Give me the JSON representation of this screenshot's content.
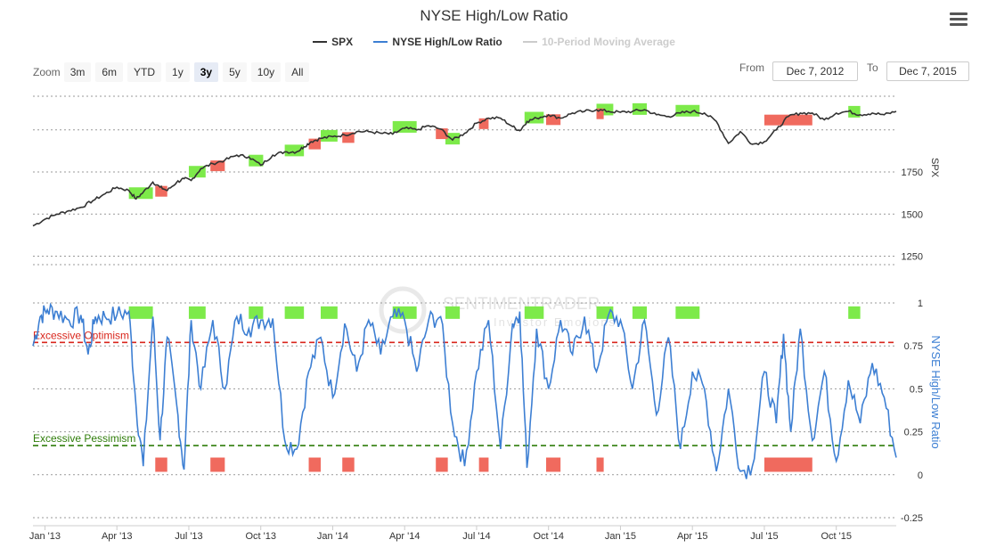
{
  "chart_data": {
    "type": "line",
    "title": "NYSE High/Low Ratio",
    "legend": [
      {
        "name": "SPX",
        "color": "#333333",
        "visible": true
      },
      {
        "name": "NYSE High/Low Ratio",
        "color": "#3d7fd3",
        "visible": true
      },
      {
        "name": "10-Period Moving Average",
        "color": "#cccccc",
        "visible": false
      }
    ],
    "x_ticks": [
      "Jan '13",
      "Apr '13",
      "Jul '13",
      "Oct '13",
      "Jan '14",
      "Apr '14",
      "Jul '14",
      "Oct '14",
      "Jan '15",
      "Apr '15",
      "Jul '15",
      "Oct '15"
    ],
    "spx_axis": {
      "label": "SPX",
      "ticks": [
        "1250",
        "1500",
        "1750"
      ],
      "ylim": [
        1200,
        2200
      ]
    },
    "ratio_axis": {
      "label": "NYSE High/Low Ratio",
      "ticks": [
        "-0.25",
        "0",
        "0.25",
        "0.5",
        "0.75",
        "1"
      ],
      "ylim": [
        -0.25,
        1
      ]
    },
    "series": [
      {
        "name": "SPX",
        "x": [
          0,
          0.5,
          1,
          1.5,
          2,
          2.5,
          3,
          3.5,
          4,
          4.3,
          4.6,
          5,
          5.3,
          5.6,
          6,
          6.3,
          6.6,
          7,
          7.5,
          8,
          8.5,
          9,
          9.5,
          10,
          10.5,
          11,
          11.3,
          11.6,
          12,
          12.5,
          13,
          13.5,
          14,
          14.5,
          15,
          15.5,
          16,
          16.5,
          17,
          17.5,
          18,
          18.5,
          19,
          19.5,
          20,
          20.3,
          20.6,
          21,
          21.5,
          22,
          22.5,
          23,
          23.5,
          24,
          24.5,
          25,
          25.5,
          26,
          26.5,
          27,
          27.5,
          28,
          28.5,
          29,
          29.5,
          30,
          30.5,
          31,
          31.5,
          32,
          32.5,
          33,
          33.5,
          34,
          34.5,
          35,
          35.5,
          36
        ],
        "values": [
          1430,
          1470,
          1500,
          1520,
          1540,
          1580,
          1620,
          1660,
          1640,
          1590,
          1630,
          1690,
          1660,
          1640,
          1690,
          1710,
          1700,
          1770,
          1800,
          1820,
          1850,
          1840,
          1790,
          1850,
          1870,
          1870,
          1900,
          1930,
          1950,
          1960,
          1970,
          1990,
          1990,
          1980,
          1975,
          2010,
          2000,
          2025,
          2005,
          1940,
          1980,
          2040,
          2070,
          2070,
          2020,
          1995,
          2050,
          2070,
          2090,
          2070,
          2100,
          2110,
          2120,
          2110,
          2105,
          2110,
          2120,
          2090,
          2080,
          2100,
          2110,
          2100,
          2050,
          1920,
          1990,
          1915,
          1930,
          2000,
          2080,
          2100,
          2100,
          2060,
          2100,
          2110,
          2090,
          2100,
          2090,
          2110
        ]
      },
      {
        "name": "NYSE High/Low Ratio",
        "x": [
          0,
          0.3,
          0.6,
          1,
          1.5,
          2,
          2.3,
          2.6,
          3,
          3.5,
          4,
          4.3,
          4.6,
          5,
          5.3,
          5.6,
          6,
          6.3,
          6.6,
          7,
          7.5,
          8,
          8.5,
          9,
          9.5,
          10,
          10.5,
          11,
          11.5,
          12,
          12.5,
          13,
          13.5,
          14,
          14.5,
          15,
          15.5,
          16,
          16.5,
          17,
          17.5,
          18,
          18.5,
          19,
          19.5,
          20,
          20.3,
          20.6,
          21,
          21.5,
          22,
          22.5,
          23,
          23.5,
          24,
          24.5,
          25,
          25.5,
          26,
          26.5,
          27,
          27.5,
          28,
          28.5,
          29,
          29.5,
          30,
          30.5,
          31,
          31.3,
          31.6,
          32,
          32.5,
          33,
          33.5,
          34,
          34.5,
          35,
          35.5,
          36
        ],
        "values": [
          0.75,
          0.92,
          0.96,
          0.95,
          0.9,
          0.93,
          0.7,
          0.92,
          0.92,
          0.93,
          0.95,
          0.4,
          0.05,
          0.92,
          0.2,
          0.8,
          0.4,
          0.03,
          0.9,
          0.5,
          0.9,
          0.5,
          0.92,
          0.85,
          0.9,
          0.91,
          0.2,
          0.15,
          0.6,
          0.8,
          0.45,
          0.88,
          0.6,
          0.9,
          0.7,
          0.92,
          0.9,
          0.6,
          0.9,
          0.92,
          0.3,
          0.05,
          0.6,
          0.9,
          0.15,
          0.88,
          0.95,
          0.04,
          0.85,
          0.5,
          0.9,
          0.7,
          0.92,
          0.6,
          0.93,
          0.9,
          0.5,
          0.9,
          0.35,
          0.8,
          0.15,
          0.6,
          0.5,
          0.02,
          0.5,
          0.02,
          0.05,
          0.6,
          0.3,
          0.82,
          0.25,
          0.85,
          0.2,
          0.6,
          0.08,
          0.55,
          0.3,
          0.65,
          0.45,
          0.1
        ]
      }
    ],
    "thresholds": [
      {
        "label": "Excessive Optimism",
        "value": 0.77,
        "color": "#d9261c"
      },
      {
        "label": "Excessive Pessimism",
        "value": 0.17,
        "color": "#2f7d0a"
      }
    ],
    "highlight_zones": {
      "green": [
        [
          4,
          5
        ],
        [
          6.5,
          7.2
        ],
        [
          12,
          12.7
        ],
        [
          20.5,
          21.3
        ],
        [
          23.5,
          24.2
        ],
        [
          26.8,
          27.8
        ],
        [
          34,
          34.5
        ],
        [
          15,
          16
        ],
        [
          10.5,
          11.3
        ],
        [
          9,
          9.6
        ],
        [
          17.2,
          17.8
        ],
        [
          25,
          25.6
        ]
      ],
      "red": [
        [
          5.1,
          5.6
        ],
        [
          7.4,
          8
        ],
        [
          12.9,
          13.4
        ],
        [
          21.4,
          22
        ],
        [
          23.5,
          23.8
        ],
        [
          30.5,
          32.5
        ],
        [
          16.8,
          17.3
        ],
        [
          18.6,
          19
        ],
        [
          11.5,
          12
        ]
      ]
    }
  },
  "zoom": {
    "label": "Zoom",
    "buttons": [
      "3m",
      "6m",
      "YTD",
      "1y",
      "3y",
      "5y",
      "10y",
      "All"
    ],
    "active": "3y"
  },
  "range": {
    "from_label": "From",
    "from_value": "Dec 7, 2012",
    "to_label": "To",
    "to_value": "Dec 7, 2015"
  },
  "watermark": {
    "brand": "SENTIMENTRADER",
    "tagline": "Investor Emotions"
  },
  "colors": {
    "spx": "#333333",
    "ratio": "#3d7fd3",
    "green_zone": "#7dea4a",
    "red_zone": "#f06a5e",
    "grid": "#999999"
  }
}
